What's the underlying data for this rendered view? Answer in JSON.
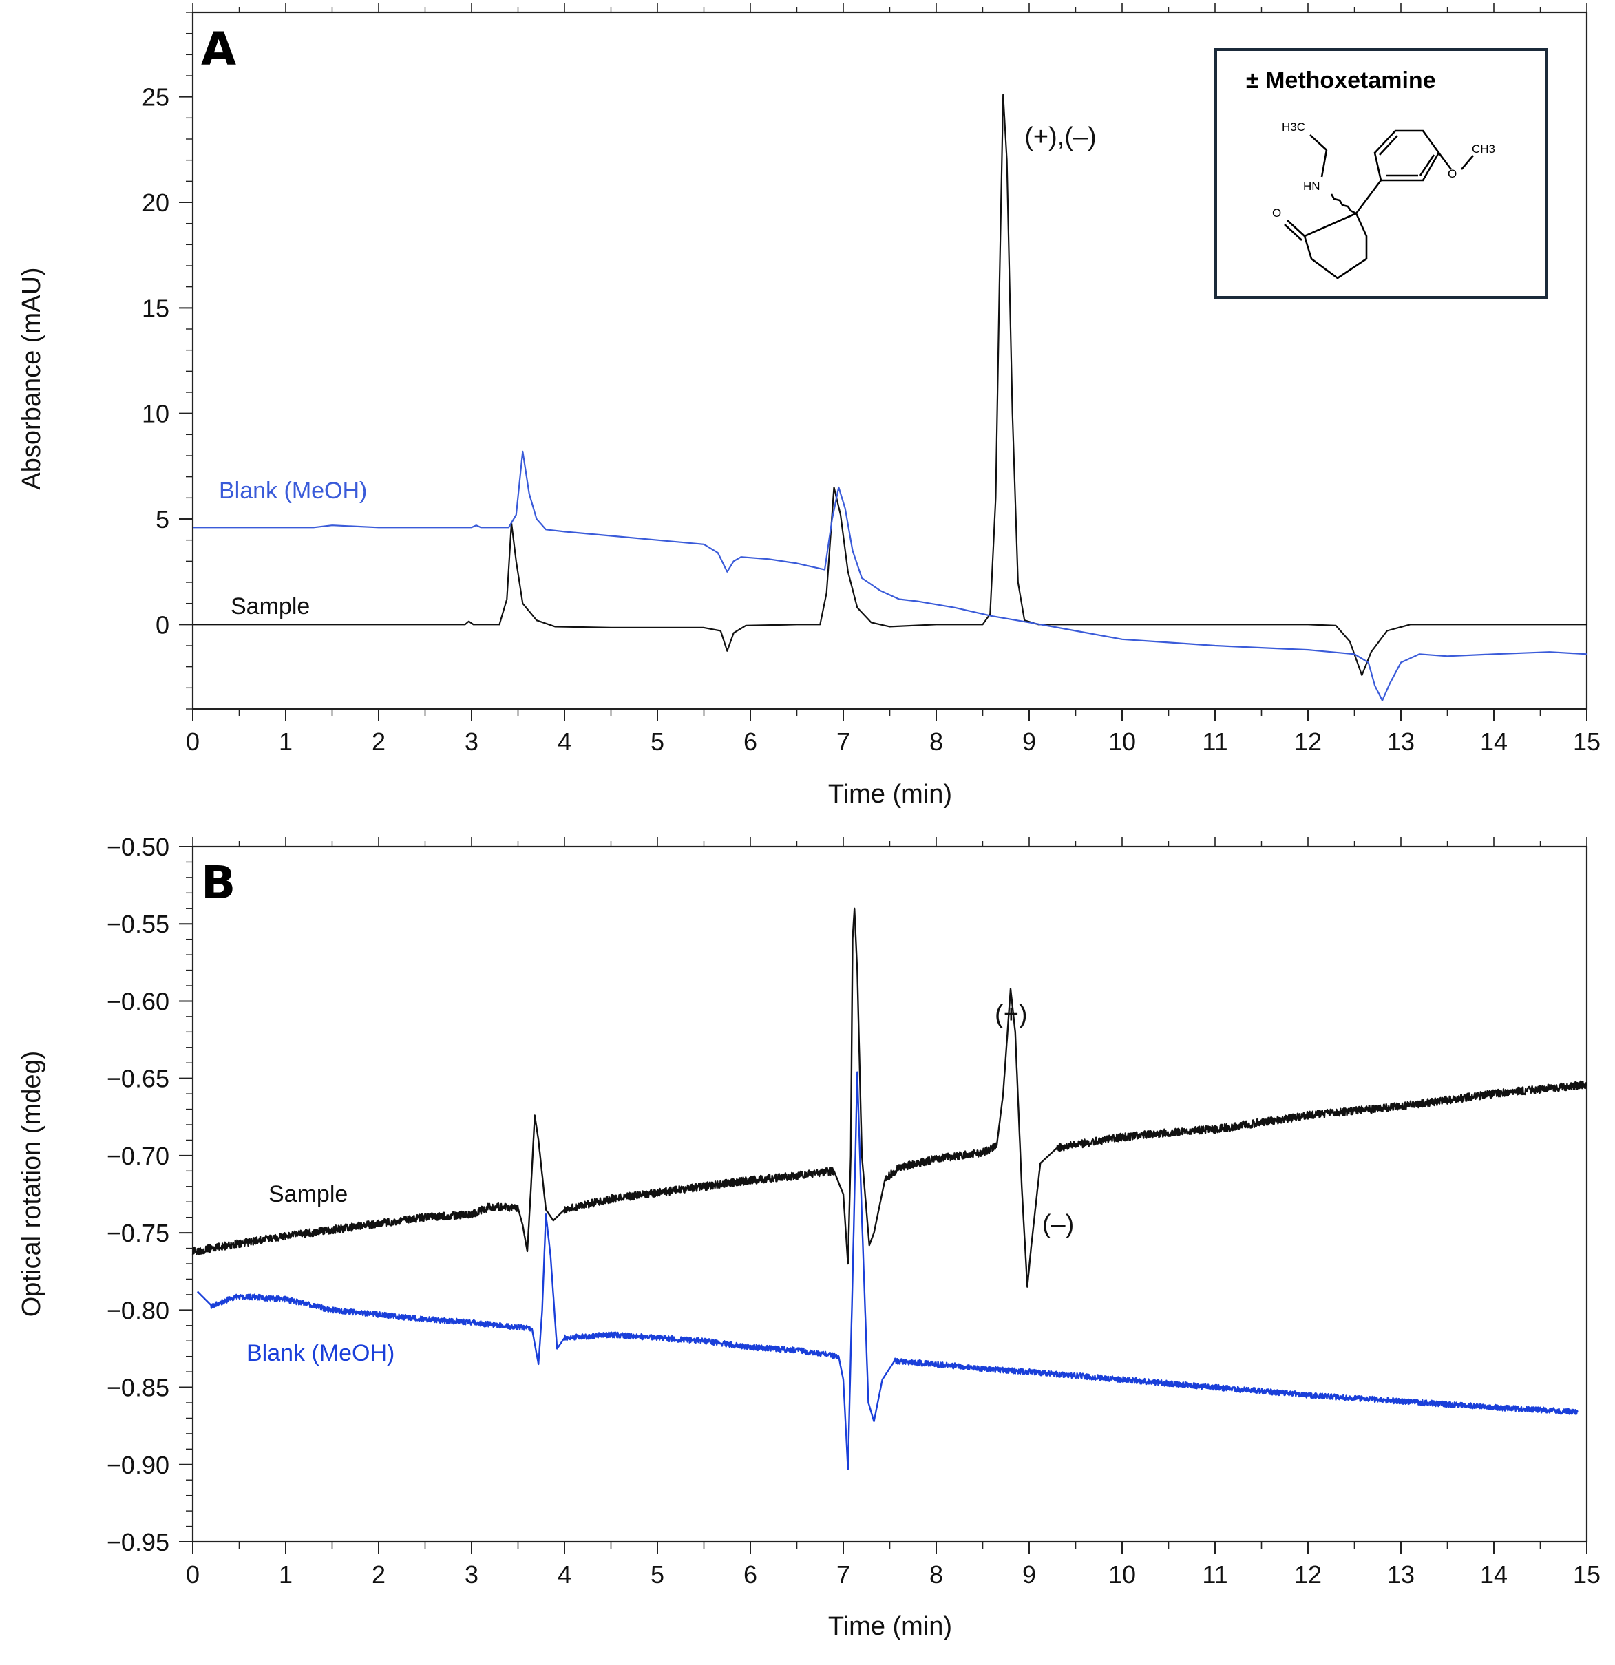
{
  "chart_data": [
    {
      "panel": "A",
      "type": "line",
      "xlabel": "Time (min)",
      "ylabel": "Absorbance (mAU)",
      "xlim": [
        0,
        15
      ],
      "ylim": [
        -4,
        29
      ],
      "xticks": [
        "0",
        "1",
        "2",
        "3",
        "4",
        "5",
        "6",
        "7",
        "8",
        "9",
        "10",
        "11",
        "12",
        "13",
        "14",
        "15"
      ],
      "yticks": [
        {
          "value": 0,
          "label": "0"
        },
        {
          "value": 5,
          "label": "5"
        },
        {
          "value": 10,
          "label": "10"
        },
        {
          "value": 15,
          "label": "15"
        },
        {
          "value": 20,
          "label": "20"
        },
        {
          "value": 25,
          "label": "25"
        }
      ],
      "series": [
        {
          "name": "Sample",
          "label": "Sample",
          "color": "#111111",
          "points": [
            [
              0,
              0
            ],
            [
              1,
              0
            ],
            [
              2,
              0
            ],
            [
              2.93,
              0
            ],
            [
              2.97,
              0.15
            ],
            [
              3.02,
              0
            ],
            [
              3.3,
              0
            ],
            [
              3.38,
              1.2
            ],
            [
              3.43,
              4.8
            ],
            [
              3.48,
              3.0
            ],
            [
              3.55,
              1.0
            ],
            [
              3.7,
              0.2
            ],
            [
              3.9,
              -0.1
            ],
            [
              4.5,
              -0.15
            ],
            [
              5.5,
              -0.15
            ],
            [
              5.68,
              -0.3
            ],
            [
              5.75,
              -1.25
            ],
            [
              5.82,
              -0.4
            ],
            [
              5.95,
              -0.05
            ],
            [
              6.5,
              0
            ],
            [
              6.75,
              0
            ],
            [
              6.82,
              1.5
            ],
            [
              6.9,
              6.5
            ],
            [
              6.97,
              5.2
            ],
            [
              7.05,
              2.5
            ],
            [
              7.15,
              0.8
            ],
            [
              7.3,
              0.1
            ],
            [
              7.5,
              -0.1
            ],
            [
              8.0,
              0
            ],
            [
              8.5,
              0
            ],
            [
              8.58,
              0.5
            ],
            [
              8.64,
              6.0
            ],
            [
              8.68,
              16
            ],
            [
              8.72,
              25.1
            ],
            [
              8.76,
              22
            ],
            [
              8.82,
              10
            ],
            [
              8.88,
              2
            ],
            [
              8.95,
              0.2
            ],
            [
              9.1,
              0
            ],
            [
              10,
              0
            ],
            [
              11,
              0
            ],
            [
              12,
              0
            ],
            [
              12.3,
              -0.05
            ],
            [
              12.45,
              -0.8
            ],
            [
              12.58,
              -2.4
            ],
            [
              12.68,
              -1.3
            ],
            [
              12.85,
              -0.3
            ],
            [
              13.1,
              0
            ],
            [
              14,
              0
            ],
            [
              15,
              0
            ]
          ]
        },
        {
          "name": "Blank (MeOH)",
          "label": "Blank (MeOH)",
          "color": "#3a5bd9",
          "points": [
            [
              0,
              4.6
            ],
            [
              1.3,
              4.6
            ],
            [
              1.5,
              4.7
            ],
            [
              2.0,
              4.6
            ],
            [
              3.0,
              4.6
            ],
            [
              3.05,
              4.7
            ],
            [
              3.1,
              4.6
            ],
            [
              3.4,
              4.6
            ],
            [
              3.48,
              5.2
            ],
            [
              3.55,
              8.2
            ],
            [
              3.62,
              6.2
            ],
            [
              3.7,
              5.0
            ],
            [
              3.8,
              4.5
            ],
            [
              4.0,
              4.4
            ],
            [
              4.5,
              4.2
            ],
            [
              5.0,
              4.0
            ],
            [
              5.5,
              3.8
            ],
            [
              5.65,
              3.4
            ],
            [
              5.75,
              2.5
            ],
            [
              5.82,
              3.0
            ],
            [
              5.9,
              3.2
            ],
            [
              6.2,
              3.1
            ],
            [
              6.5,
              2.9
            ],
            [
              6.8,
              2.6
            ],
            [
              6.88,
              5.0
            ],
            [
              6.95,
              6.5
            ],
            [
              7.02,
              5.5
            ],
            [
              7.1,
              3.5
            ],
            [
              7.2,
              2.2
            ],
            [
              7.4,
              1.6
            ],
            [
              7.6,
              1.2
            ],
            [
              7.8,
              1.1
            ],
            [
              8.2,
              0.8
            ],
            [
              8.6,
              0.4
            ],
            [
              9.0,
              0.1
            ],
            [
              9.5,
              -0.3
            ],
            [
              10.0,
              -0.7
            ],
            [
              10.5,
              -0.85
            ],
            [
              11.0,
              -1.0
            ],
            [
              11.5,
              -1.1
            ],
            [
              12.0,
              -1.2
            ],
            [
              12.5,
              -1.4
            ],
            [
              12.65,
              -1.8
            ],
            [
              12.72,
              -2.9
            ],
            [
              12.8,
              -3.6
            ],
            [
              12.88,
              -2.8
            ],
            [
              13.0,
              -1.8
            ],
            [
              13.2,
              -1.4
            ],
            [
              13.5,
              -1.5
            ],
            [
              14.0,
              -1.4
            ],
            [
              14.6,
              -1.3
            ],
            [
              15,
              -1.4
            ]
          ]
        }
      ],
      "annotations": [
        {
          "text": "(+),(–)",
          "x": 8.95,
          "y": 22.7
        }
      ],
      "inset": {
        "title": "± Methoxetamine",
        "atom_labels": {
          "h3c": "H3C",
          "nh": "HN",
          "o_ketone": "O",
          "o_ether": "O",
          "ch3": "CH3"
        }
      }
    },
    {
      "panel": "B",
      "type": "line",
      "xlabel": "Time (min)",
      "ylabel": "Optical rotation (mdeg)",
      "xlim": [
        0,
        15
      ],
      "ylim": [
        -0.95,
        -0.5
      ],
      "xticks": [
        "0",
        "1",
        "2",
        "3",
        "4",
        "5",
        "6",
        "7",
        "8",
        "9",
        "10",
        "11",
        "12",
        "13",
        "14",
        "15"
      ],
      "yticks": [
        {
          "value": -0.95,
          "label": "−0.95"
        },
        {
          "value": -0.9,
          "label": "−0.90"
        },
        {
          "value": -0.85,
          "label": "−0.85"
        },
        {
          "value": -0.8,
          "label": "−0.80"
        },
        {
          "value": -0.75,
          "label": "−0.75"
        },
        {
          "value": -0.7,
          "label": "−0.70"
        },
        {
          "value": -0.65,
          "label": "−0.65"
        },
        {
          "value": -0.6,
          "label": "−0.60"
        },
        {
          "value": -0.55,
          "label": "−0.55"
        },
        {
          "value": -0.5,
          "label": "−0.50"
        }
      ],
      "series": [
        {
          "name": "Sample",
          "label": "Sample",
          "color": "#111111",
          "points": [
            [
              0,
              -0.762
            ],
            [
              0.5,
              -0.757
            ],
            [
              1.0,
              -0.752
            ],
            [
              1.5,
              -0.748
            ],
            [
              2.0,
              -0.744
            ],
            [
              2.5,
              -0.74
            ],
            [
              3.0,
              -0.738
            ],
            [
              3.2,
              -0.733
            ],
            [
              3.5,
              -0.734
            ],
            [
              3.55,
              -0.745
            ],
            [
              3.6,
              -0.762
            ],
            [
              3.64,
              -0.72
            ],
            [
              3.68,
              -0.674
            ],
            [
              3.72,
              -0.69
            ],
            [
              3.8,
              -0.735
            ],
            [
              3.88,
              -0.742
            ],
            [
              4.0,
              -0.735
            ],
            [
              4.5,
              -0.728
            ],
            [
              5.0,
              -0.724
            ],
            [
              5.5,
              -0.72
            ],
            [
              6.0,
              -0.716
            ],
            [
              6.5,
              -0.713
            ],
            [
              6.9,
              -0.71
            ],
            [
              7.0,
              -0.725
            ],
            [
              7.05,
              -0.77
            ],
            [
              7.08,
              -0.7
            ],
            [
              7.1,
              -0.56
            ],
            [
              7.12,
              -0.54
            ],
            [
              7.15,
              -0.58
            ],
            [
              7.2,
              -0.7
            ],
            [
              7.28,
              -0.758
            ],
            [
              7.33,
              -0.75
            ],
            [
              7.45,
              -0.715
            ],
            [
              7.6,
              -0.708
            ],
            [
              8.0,
              -0.702
            ],
            [
              8.5,
              -0.698
            ],
            [
              8.65,
              -0.694
            ],
            [
              8.72,
              -0.66
            ],
            [
              8.8,
              -0.592
            ],
            [
              8.85,
              -0.62
            ],
            [
              8.92,
              -0.72
            ],
            [
              8.98,
              -0.785
            ],
            [
              9.02,
              -0.76
            ],
            [
              9.12,
              -0.705
            ],
            [
              9.3,
              -0.695
            ],
            [
              10.0,
              -0.688
            ],
            [
              10.7,
              -0.684
            ],
            [
              11.0,
              -0.683
            ],
            [
              12.0,
              -0.674
            ],
            [
              13.0,
              -0.668
            ],
            [
              14.0,
              -0.66
            ],
            [
              15,
              -0.654
            ]
          ],
          "noise": 0.0025
        },
        {
          "name": "Blank (MeOH)",
          "label": "Blank (MeOH)",
          "color": "#1a3fd9",
          "points": [
            [
              0.05,
              -0.788
            ],
            [
              0.2,
              -0.797
            ],
            [
              0.5,
              -0.791
            ],
            [
              1.0,
              -0.793
            ],
            [
              1.5,
              -0.8
            ],
            [
              2.0,
              -0.803
            ],
            [
              2.5,
              -0.806
            ],
            [
              3.0,
              -0.808
            ],
            [
              3.5,
              -0.811
            ],
            [
              3.65,
              -0.812
            ],
            [
              3.72,
              -0.835
            ],
            [
              3.76,
              -0.8
            ],
            [
              3.8,
              -0.738
            ],
            [
              3.85,
              -0.765
            ],
            [
              3.92,
              -0.825
            ],
            [
              4.0,
              -0.818
            ],
            [
              4.5,
              -0.816
            ],
            [
              5.0,
              -0.818
            ],
            [
              5.5,
              -0.82
            ],
            [
              6.0,
              -0.824
            ],
            [
              6.5,
              -0.826
            ],
            [
              6.95,
              -0.83
            ],
            [
              7.0,
              -0.845
            ],
            [
              7.05,
              -0.903
            ],
            [
              7.1,
              -0.78
            ],
            [
              7.15,
              -0.646
            ],
            [
              7.2,
              -0.74
            ],
            [
              7.27,
              -0.86
            ],
            [
              7.33,
              -0.872
            ],
            [
              7.42,
              -0.845
            ],
            [
              7.55,
              -0.833
            ],
            [
              8.0,
              -0.835
            ],
            [
              8.5,
              -0.838
            ],
            [
              9.0,
              -0.84
            ],
            [
              10.0,
              -0.845
            ],
            [
              11.0,
              -0.85
            ],
            [
              12.0,
              -0.855
            ],
            [
              13.0,
              -0.859
            ],
            [
              14.0,
              -0.863
            ],
            [
              14.9,
              -0.866
            ]
          ],
          "noise": 0.0018
        }
      ],
      "annotations": [
        {
          "text": "(+)",
          "x": 8.63,
          "y": -0.614
        },
        {
          "text": "(–)",
          "x": 9.14,
          "y": -0.75
        }
      ]
    }
  ],
  "colors": {
    "sample": "#111111",
    "blank_a": "#3a5bd9",
    "blank_b": "#1a3fd9",
    "inset_border": "#1b2a3a"
  }
}
